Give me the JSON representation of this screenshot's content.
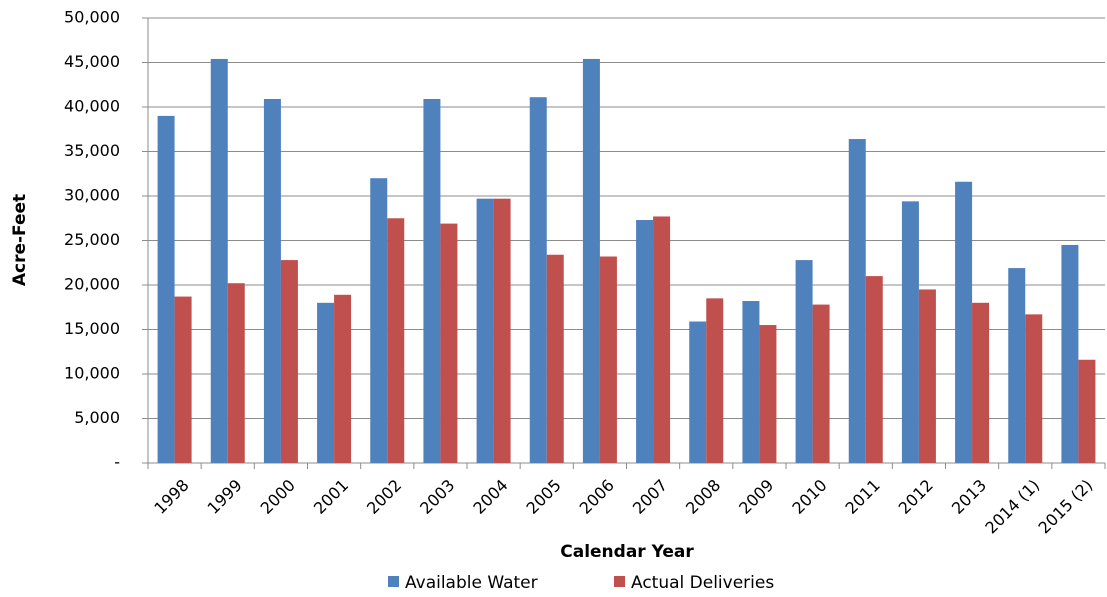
{
  "chart_data": {
    "type": "bar",
    "x_label": "Calendar Year",
    "y_label": "Acre-Feet",
    "categories": [
      "1998",
      "1999",
      "2000",
      "2001",
      "2002",
      "2003",
      "2004",
      "2005",
      "2006",
      "2007",
      "2008",
      "2009",
      "2010",
      "2011",
      "2012",
      "2013",
      "2014 (1)",
      "2015 (2)"
    ],
    "series": [
      {
        "name": "Available Water",
        "color": "#4f81bd",
        "values": [
          39000,
          45400,
          40900,
          18000,
          32000,
          40900,
          29700,
          41100,
          45400,
          27300,
          15900,
          18200,
          22800,
          36400,
          29400,
          31600,
          21900,
          24500
        ]
      },
      {
        "name": "Actual Deliveries",
        "color": "#c0504d",
        "values": [
          18700,
          20200,
          22800,
          18900,
          27500,
          26900,
          29700,
          23400,
          23200,
          27700,
          18500,
          15500,
          17800,
          21000,
          19500,
          18000,
          16700,
          11600
        ]
      }
    ],
    "ylim": [
      0,
      50000
    ],
    "yticks": [
      {
        "value": 0,
        "label": "-"
      },
      {
        "value": 5000,
        "label": "5,000"
      },
      {
        "value": 10000,
        "label": "10,000"
      },
      {
        "value": 15000,
        "label": "15,000"
      },
      {
        "value": 20000,
        "label": "20,000"
      },
      {
        "value": 25000,
        "label": "25,000"
      },
      {
        "value": 30000,
        "label": "30,000"
      },
      {
        "value": 35000,
        "label": "35,000"
      },
      {
        "value": 40000,
        "label": "40,000"
      },
      {
        "value": 45000,
        "label": "45,000"
      },
      {
        "value": 50000,
        "label": "50,000"
      }
    ],
    "grid": true,
    "legend": "bottom"
  }
}
